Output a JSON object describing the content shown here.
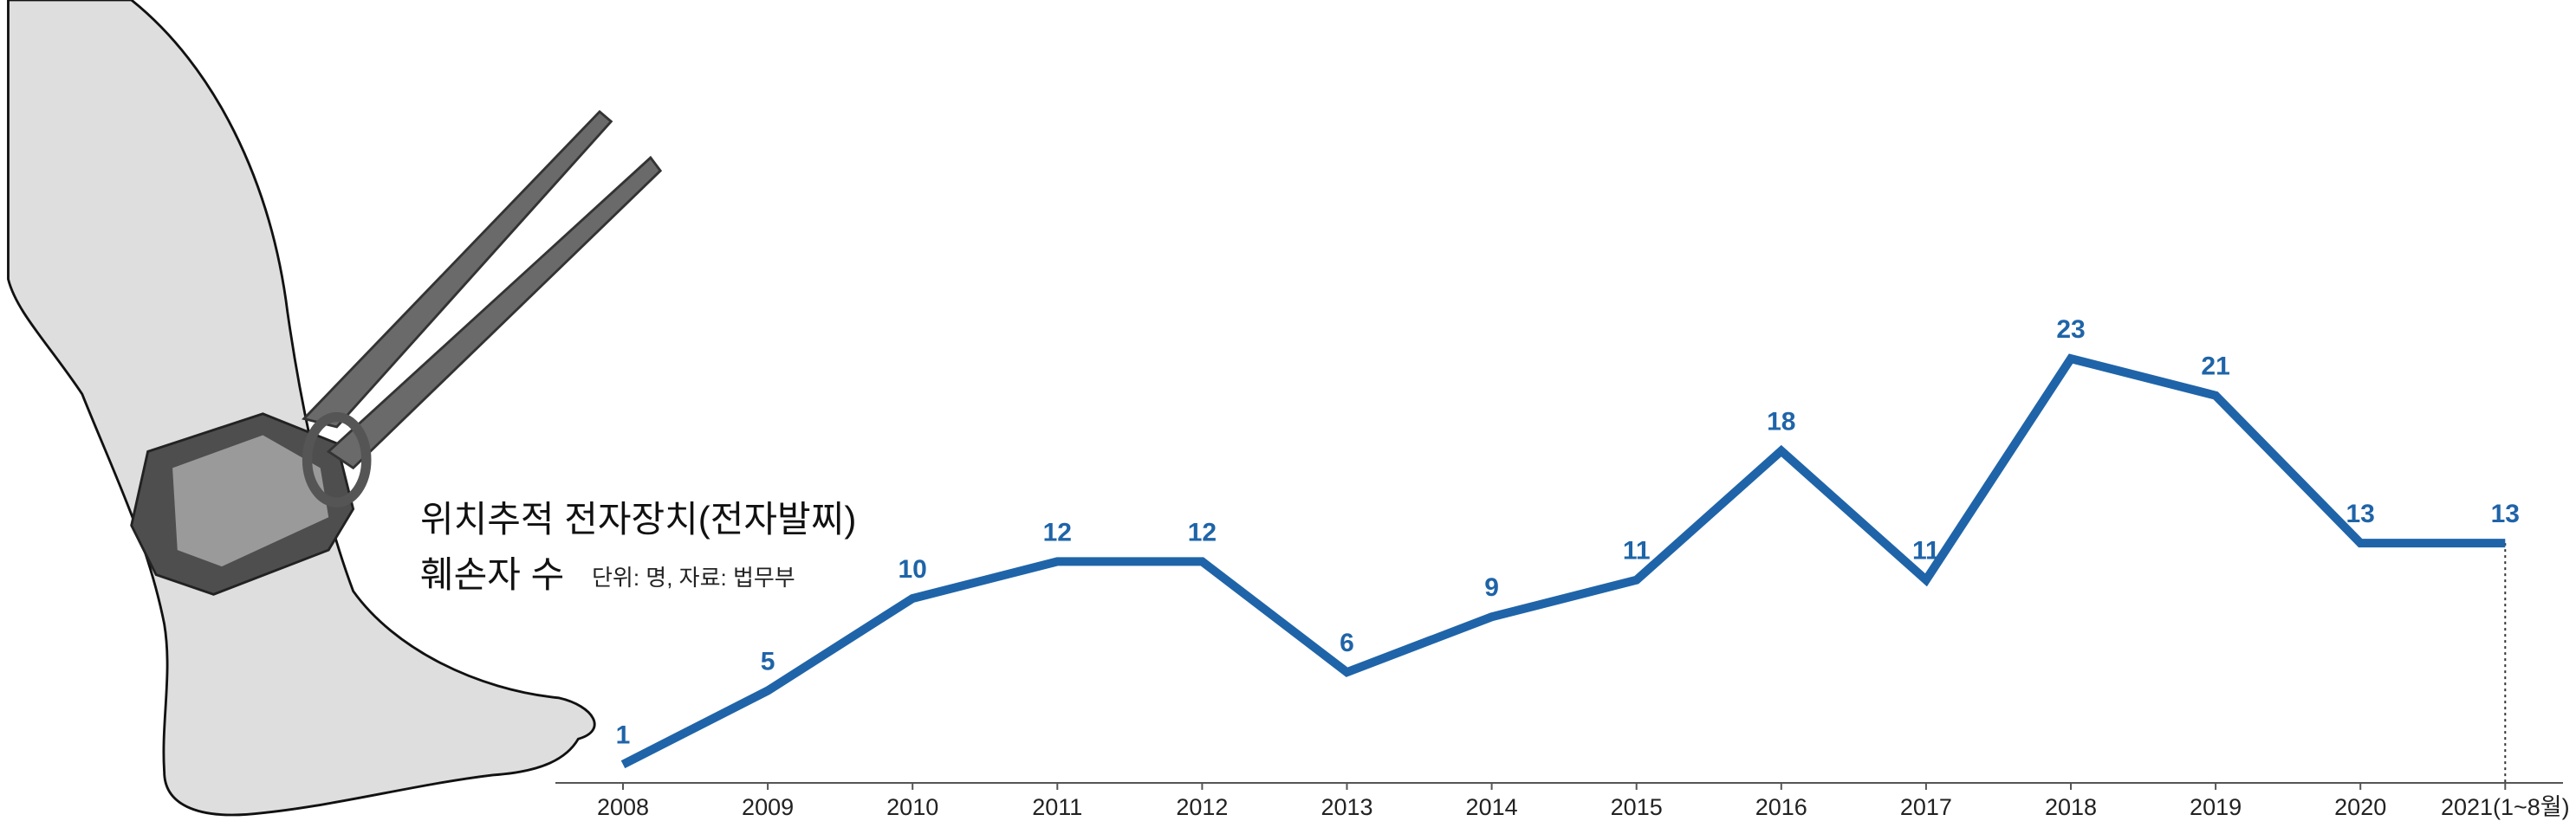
{
  "chart_data": {
    "type": "line",
    "title": "위치추적 전자장치(전자발찌)",
    "title_line2": "훼손자 수",
    "subtitle": "단위: 명, 자료: 법무부",
    "categories": [
      "2008",
      "2009",
      "2010",
      "2011",
      "2012",
      "2013",
      "2014",
      "2015",
      "2016",
      "2017",
      "2018",
      "2019",
      "2020",
      "2021(1~8월)"
    ],
    "values": [
      1,
      5,
      10,
      12,
      12,
      6,
      9,
      11,
      18,
      11,
      23,
      21,
      13,
      13
    ],
    "color": "#1f64a8"
  }
}
